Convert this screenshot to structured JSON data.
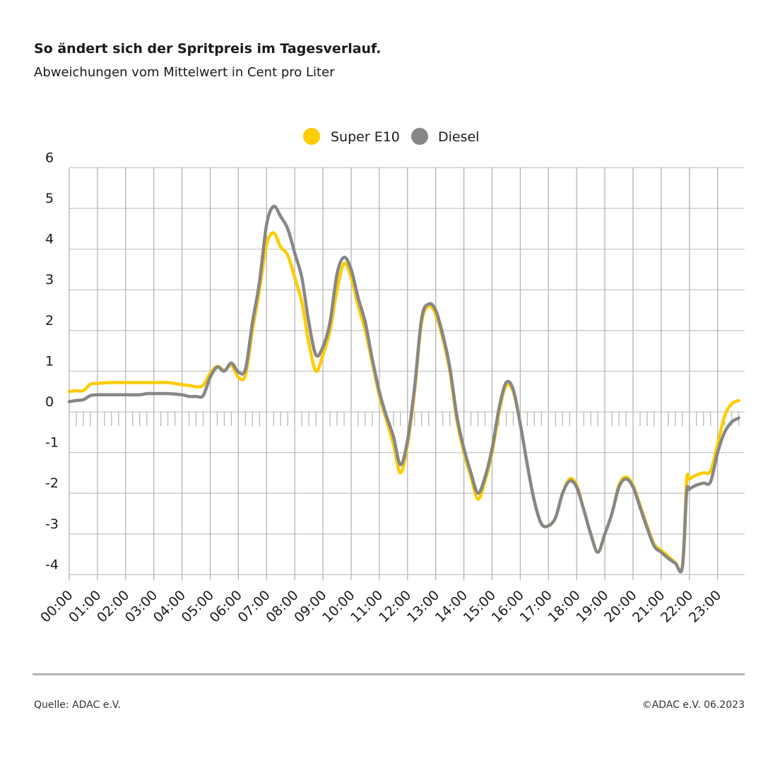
{
  "chart_data": {
    "type": "line",
    "title": "So ändert sich der Spritpreis im Tagesverlauf.",
    "subtitle": "Abweichungen vom Mittelwert in Cent pro Liter",
    "xlabel": "",
    "ylabel": "",
    "ylim": [
      -4,
      6
    ],
    "yticks": [
      "6",
      "5",
      "4",
      "3",
      "2",
      "1",
      "0",
      "-1",
      "-2",
      "-3",
      "-4"
    ],
    "xticks": [
      "00:00",
      "01:00",
      "02:00",
      "03:00",
      "04:00",
      "05:00",
      "06:00",
      "07:00",
      "08:00",
      "09:00",
      "10:00",
      "11:00",
      "12:00",
      "13:00",
      "14:00",
      "15:00",
      "16:00",
      "17:00",
      "18:00",
      "19:00",
      "20:00",
      "21:00",
      "22:00",
      "23:00"
    ],
    "grid": true,
    "legend_position": "top-center",
    "x": [
      "00:00",
      "00:15",
      "00:30",
      "00:45",
      "01:00",
      "01:30",
      "02:00",
      "02:30",
      "02:45",
      "03:00",
      "03:30",
      "04:00",
      "04:15",
      "04:30",
      "04:45",
      "05:00",
      "05:15",
      "05:30",
      "05:45",
      "06:00",
      "06:15",
      "06:30",
      "06:45",
      "07:00",
      "07:15",
      "07:30",
      "07:45",
      "08:00",
      "08:15",
      "08:30",
      "08:45",
      "09:00",
      "09:15",
      "09:30",
      "09:45",
      "10:00",
      "10:15",
      "10:30",
      "10:45",
      "11:00",
      "11:15",
      "11:30",
      "11:45",
      "12:00",
      "12:15",
      "12:30",
      "12:45",
      "13:00",
      "13:15",
      "13:30",
      "13:45",
      "14:00",
      "14:15",
      "14:30",
      "14:45",
      "15:00",
      "15:15",
      "15:30",
      "15:45",
      "16:00",
      "16:15",
      "16:30",
      "16:45",
      "17:00",
      "17:15",
      "17:30",
      "17:45",
      "18:00",
      "18:15",
      "18:30",
      "18:45",
      "19:00",
      "19:15",
      "19:30",
      "19:45",
      "20:00",
      "20:15",
      "20:30",
      "20:45",
      "21:00",
      "21:15",
      "21:30",
      "21:45",
      "21:54",
      "22:00",
      "22:15",
      "22:30",
      "22:45",
      "23:00",
      "23:15",
      "23:30",
      "23:45"
    ],
    "series": [
      {
        "name": "Super E10",
        "color": "#ffcc00",
        "values": [
          0.5,
          0.52,
          0.52,
          0.68,
          0.7,
          0.72,
          0.72,
          0.72,
          0.72,
          0.72,
          0.72,
          0.67,
          0.65,
          0.62,
          0.65,
          0.95,
          1.12,
          1.02,
          1.15,
          0.85,
          0.9,
          2.0,
          3.0,
          4.1,
          4.4,
          4.05,
          3.85,
          3.3,
          2.7,
          1.7,
          1.0,
          1.4,
          2.0,
          3.0,
          3.65,
          3.3,
          2.6,
          2.0,
          1.2,
          0.4,
          -0.2,
          -0.8,
          -1.5,
          -0.8,
          0.5,
          2.2,
          2.6,
          2.4,
          1.8,
          1.0,
          -0.2,
          -1.0,
          -1.6,
          -2.15,
          -1.7,
          -1.0,
          0.0,
          0.65,
          0.5,
          -0.3,
          -1.3,
          -2.2,
          -2.75,
          -2.8,
          -2.6,
          -2.0,
          -1.65,
          -1.8,
          -2.4,
          -3.0,
          -3.45,
          -3.0,
          -2.5,
          -1.8,
          -1.6,
          -1.8,
          -2.3,
          -2.8,
          -3.25,
          -3.4,
          -3.55,
          -3.7,
          -3.8,
          -1.7,
          -1.65,
          -1.55,
          -1.5,
          -1.45,
          -0.8,
          -0.1,
          0.2,
          0.28
        ]
      },
      {
        "name": "Diesel",
        "color": "#878787",
        "values": [
          0.25,
          0.28,
          0.3,
          0.4,
          0.42,
          0.42,
          0.42,
          0.42,
          0.45,
          0.45,
          0.45,
          0.42,
          0.38,
          0.38,
          0.4,
          0.85,
          1.1,
          1.0,
          1.2,
          0.98,
          1.05,
          2.2,
          3.2,
          4.6,
          5.05,
          4.8,
          4.5,
          3.9,
          3.3,
          2.2,
          1.4,
          1.6,
          2.2,
          3.4,
          3.8,
          3.5,
          2.8,
          2.2,
          1.3,
          0.5,
          -0.1,
          -0.6,
          -1.3,
          -0.7,
          0.6,
          2.3,
          2.65,
          2.5,
          1.9,
          1.1,
          -0.1,
          -0.9,
          -1.5,
          -2.0,
          -1.6,
          -0.9,
          0.1,
          0.72,
          0.55,
          -0.3,
          -1.3,
          -2.2,
          -2.75,
          -2.8,
          -2.6,
          -2.0,
          -1.7,
          -1.85,
          -2.4,
          -3.0,
          -3.45,
          -3.0,
          -2.5,
          -1.85,
          -1.65,
          -1.85,
          -2.35,
          -2.85,
          -3.3,
          -3.45,
          -3.6,
          -3.72,
          -3.82,
          -2.0,
          -1.9,
          -1.8,
          -1.75,
          -1.72,
          -1.0,
          -0.5,
          -0.25,
          -0.15
        ]
      }
    ]
  },
  "footer": {
    "source": "Quelle: ADAC e.V.",
    "copyright": "©ADAC e.V.  06.2023"
  }
}
